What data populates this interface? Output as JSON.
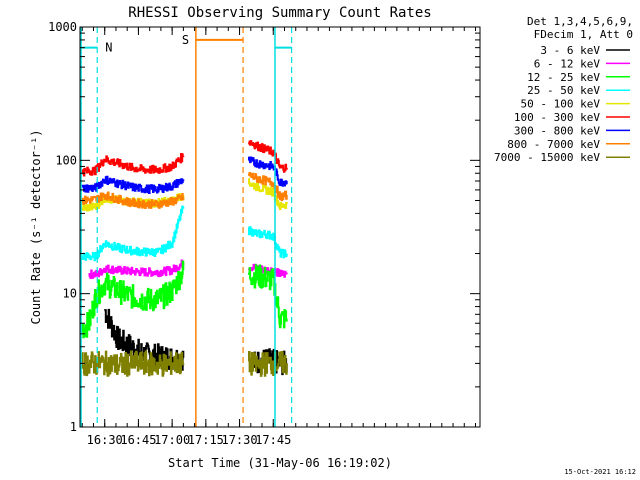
{
  "chart_data": {
    "type": "line",
    "title": "RHESSI Observing Summary Count Rates",
    "xlabel": "Start Time (31-May-06 16:19:02)",
    "ylabel": "Count Rate (s⁻¹ detector⁻¹)",
    "yscale": "log",
    "ylim": [
      1,
      1000
    ],
    "xlim_minutes_after_start": [
      0,
      178
    ],
    "x_ticks": [
      {
        "label": "16:30",
        "minute": 11
      },
      {
        "label": "16:45",
        "minute": 26
      },
      {
        "label": "17:00",
        "minute": 41
      },
      {
        "label": "17:15",
        "minute": 56
      },
      {
        "label": "17:30",
        "minute": 71
      },
      {
        "label": "17:45",
        "minute": 86
      }
    ],
    "y_ticks": [
      {
        "label": "1",
        "value": 1
      },
      {
        "label": "10",
        "value": 10
      },
      {
        "label": "100",
        "value": 100
      },
      {
        "label": "1000",
        "value": 1000
      }
    ],
    "legend_header": [
      "Det 1,3,4,5,6,9,",
      "FDecim 1, Att 0"
    ],
    "legend_placement": "right",
    "timestamp": "15-Oct-2021 16:12",
    "annotations": [
      {
        "label": "N",
        "color": "#00e0e0"
      },
      {
        "label": "S",
        "color": "#ff8000"
      }
    ],
    "series": [
      {
        "name": "3 - 6 keV",
        "color": "#000000",
        "x": [
          "16:30",
          "16:36",
          "16:42",
          "16:48",
          "16:54",
          "17:00",
          "17:05",
          "17:36",
          "17:42",
          "17:48",
          "17:51"
        ],
        "values": [
          7.5,
          4.5,
          4.0,
          3.5,
          3.4,
          3.3,
          3.3,
          3.0,
          3.2,
          3.0,
          3.0
        ]
      },
      {
        "name": "6 - 12 keV",
        "color": "#ff00ff",
        "x": [
          "16:23",
          "16:27",
          "16:30",
          "16:36",
          "16:42",
          "16:48",
          "16:54",
          "17:00",
          "17:05",
          "17:34",
          "17:38",
          "17:42",
          "17:45",
          "17:48",
          "17:51"
        ],
        "values": [
          14,
          14,
          15.5,
          15,
          14.7,
          14.5,
          14.5,
          15,
          17,
          16,
          15.5,
          15,
          15,
          14,
          14
        ]
      },
      {
        "name": "12 - 25 keV",
        "color": "#00ff00",
        "x": [
          "16:20",
          "16:23",
          "16:26",
          "16:30",
          "16:36",
          "16:42",
          "16:48",
          "16:54",
          "17:00",
          "17:05",
          "17:34",
          "17:38",
          "17:42",
          "17:45",
          "17:48",
          "17:51"
        ],
        "values": [
          5.5,
          6.0,
          9.5,
          12,
          10.5,
          9.5,
          9.0,
          9.0,
          10.5,
          15,
          14,
          13.5,
          13,
          12.5,
          6.5,
          6.5
        ]
      },
      {
        "name": "25 - 50 keV",
        "color": "#00ffff",
        "x": [
          "16:20",
          "16:26",
          "16:30",
          "16:36",
          "16:42",
          "16:48",
          "16:54",
          "17:00",
          "17:05",
          "17:34",
          "17:38",
          "17:42",
          "17:45",
          "17:48",
          "17:51"
        ],
        "values": [
          19,
          19,
          24,
          22,
          21,
          20.5,
          20.5,
          24,
          45,
          30,
          28,
          28,
          27,
          20,
          20
        ]
      },
      {
        "name": "50 - 100 keV",
        "color": "#e6e600",
        "x": [
          "16:20",
          "16:26",
          "16:30",
          "16:36",
          "16:42",
          "16:48",
          "16:54",
          "17:00",
          "17:05",
          "17:34",
          "17:38",
          "17:42",
          "17:45",
          "17:48",
          "17:51"
        ],
        "values": [
          44,
          45,
          52,
          50,
          49,
          48,
          48,
          50,
          55,
          68,
          63,
          60,
          58,
          45,
          47
        ]
      },
      {
        "name": "100 - 300 keV",
        "color": "#ff0000",
        "x": [
          "16:20",
          "16:26",
          "16:30",
          "16:36",
          "16:42",
          "16:48",
          "16:54",
          "17:00",
          "17:05",
          "17:34",
          "17:38",
          "17:42",
          "17:45",
          "17:48",
          "17:51"
        ],
        "values": [
          82,
          84,
          102,
          95,
          88,
          85,
          85,
          90,
          108,
          140,
          128,
          120,
          115,
          88,
          88
        ]
      },
      {
        "name": "300 - 800 keV",
        "color": "#0000ff",
        "x": [
          "16:20",
          "16:26",
          "16:30",
          "16:36",
          "16:42",
          "16:48",
          "16:54",
          "17:00",
          "17:05",
          "17:34",
          "17:38",
          "17:42",
          "17:45",
          "17:48",
          "17:51"
        ],
        "values": [
          62,
          62,
          72,
          67,
          63,
          61,
          61,
          64,
          72,
          100,
          95,
          92,
          90,
          68,
          70
        ]
      },
      {
        "name": "800 - 7000 keV",
        "color": "#ff8000",
        "x": [
          "16:20",
          "16:26",
          "16:30",
          "16:36",
          "16:42",
          "16:48",
          "16:54",
          "17:00",
          "17:05",
          "17:34",
          "17:38",
          "17:42",
          "17:45",
          "17:48",
          "17:51"
        ],
        "values": [
          50,
          51,
          55,
          51,
          48,
          47,
          47,
          49,
          53,
          78,
          73,
          70,
          68,
          53,
          55
        ]
      },
      {
        "name": "7000 - 15000 keV",
        "color": "#808000",
        "x": [
          "16:20",
          "16:26",
          "16:30",
          "16:36",
          "16:42",
          "16:48",
          "16:54",
          "17:00",
          "17:05",
          "17:34",
          "17:38",
          "17:42",
          "17:45",
          "17:48",
          "17:51"
        ],
        "values": [
          3.0,
          3.0,
          3.0,
          2.9,
          3.0,
          3.0,
          2.9,
          3.0,
          3.0,
          3.0,
          2.9,
          3.0,
          3.0,
          3.0,
          3.0
        ]
      }
    ]
  }
}
